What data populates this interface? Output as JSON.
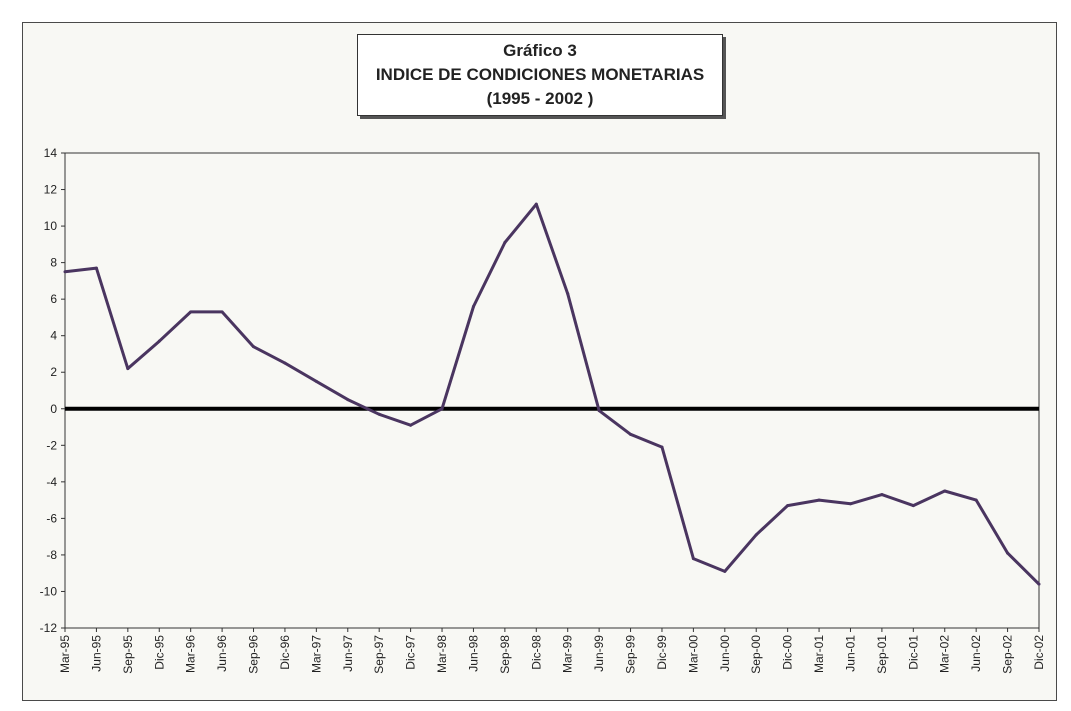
{
  "chart_data": {
    "type": "line",
    "title": "Gráfico 3",
    "subtitle": "INDICE DE CONDICIONES MONETARIAS",
    "period": "(1995 - 2002 )",
    "xlabel": "",
    "ylabel": "",
    "ylim": [
      -12,
      14
    ],
    "yticks": [
      14,
      12,
      10,
      8,
      6,
      4,
      2,
      0,
      -2,
      -4,
      -6,
      -8,
      -10,
      -12
    ],
    "grid": true,
    "categories": [
      "Mar-95",
      "Jun-95",
      "Sep-95",
      "Dic-95",
      "Mar-96",
      "Jun-96",
      "Sep-96",
      "Dic-96",
      "Mar-97",
      "Jun-97",
      "Sep-97",
      "Dic-97",
      "Mar-98",
      "Jun-98",
      "Sep-98",
      "Dic-98",
      "Mar-99",
      "Jun-99",
      "Sep-99",
      "Dic-99",
      "Mar-00",
      "Jun-00",
      "Sep-00",
      "Dic-00",
      "Mar-01",
      "Jun-01",
      "Sep-01",
      "Dic-01",
      "Mar-02",
      "Jun-02",
      "Sep-02",
      "Dic-02"
    ],
    "series": [
      {
        "values": [
          7.5,
          7.7,
          2.2,
          3.7,
          5.3,
          5.3,
          3.4,
          2.5,
          1.5,
          0.5,
          -0.3,
          -0.9,
          0.0,
          5.6,
          9.1,
          11.2,
          6.3,
          -0.1,
          -1.4,
          -2.1,
          -8.2,
          -8.9,
          -6.9,
          -5.3,
          -5.0,
          -5.2,
          -4.7,
          -5.3,
          -4.5,
          -5.0,
          -7.9,
          -9.6
        ],
        "color": "#4a3560"
      }
    ],
    "zero_line_color": "#000000",
    "grid_color": "#444444"
  }
}
